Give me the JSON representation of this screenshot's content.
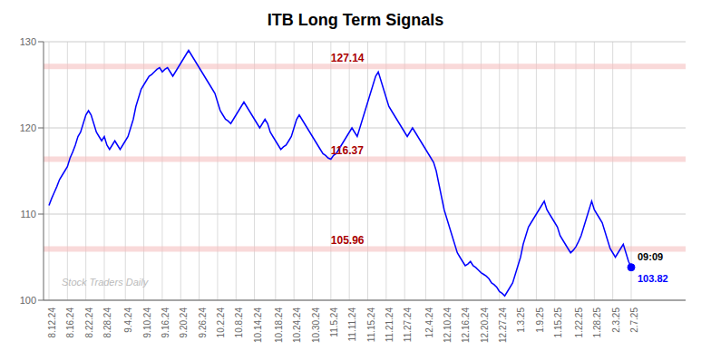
{
  "chart_data": {
    "type": "line",
    "title": "ITB Long Term Signals",
    "categories": [
      "8.12.24",
      null,
      null,
      null,
      null,
      null,
      null,
      "8.16.24",
      null,
      null,
      null,
      null,
      null,
      null,
      "8.22.24",
      null,
      null,
      null,
      null,
      null,
      null,
      "8.28.24",
      null,
      null,
      null,
      null,
      null,
      null,
      null,
      "9.4.24",
      null,
      null,
      null,
      null,
      null,
      null,
      "9.10.24",
      null,
      null,
      null,
      null,
      null,
      null,
      "9.16.24",
      null,
      null,
      null,
      null,
      null,
      null,
      "9.20.24",
      null,
      null,
      null,
      null,
      null,
      null,
      "9.26.24",
      null,
      null,
      null,
      null,
      null,
      null,
      "10.2.24",
      null,
      null,
      null,
      null,
      null,
      null,
      "10.8.24",
      null,
      null,
      null,
      null,
      null,
      null,
      "10.14.24",
      null,
      null,
      null,
      null,
      null,
      null,
      null,
      "10.18.24",
      null,
      null,
      null,
      null,
      null,
      null,
      "10.24.24",
      null,
      null,
      null,
      null,
      null,
      null,
      "10.30.24",
      null,
      null,
      null,
      null,
      null,
      null,
      "11.5.24",
      null,
      null,
      null,
      null,
      null,
      null,
      "11.11.24",
      null,
      null,
      null,
      null,
      null,
      null,
      "11.15.24",
      null,
      null,
      null,
      null,
      null,
      null,
      "11.21.24",
      null,
      null,
      null,
      null,
      null,
      null,
      "11.27.24",
      null,
      null,
      null,
      null,
      null,
      null,
      null,
      "12.4.24",
      null,
      null,
      null,
      null,
      null,
      null,
      "12.10.24",
      null,
      null,
      null,
      null,
      null,
      null,
      "12.16.24",
      null,
      null,
      null,
      null,
      null,
      null,
      "12.20.24",
      null,
      null,
      null,
      null,
      null,
      null,
      "12.27.24",
      null,
      null,
      null,
      null,
      null,
      null,
      "1.3.25",
      null,
      null,
      null,
      null,
      null,
      null,
      "1.9.25",
      null,
      null,
      null,
      null,
      null,
      null,
      "1.15.25",
      null,
      null,
      null,
      null,
      null,
      null,
      null,
      "1.22.25",
      null,
      null,
      null,
      null,
      null,
      null,
      "1.28.25",
      null,
      null,
      null,
      null,
      null,
      null,
      "2.3.25",
      null,
      null,
      null,
      null,
      null,
      null,
      "2.7.25"
    ],
    "values": [
      111.0,
      111.8,
      112.5,
      113.2,
      114.0,
      114.5,
      115.0,
      115.5,
      116.5,
      117.2,
      118.0,
      119.0,
      119.5,
      120.5,
      121.5,
      122.0,
      121.5,
      120.5,
      119.5,
      119.0,
      118.5,
      119.0,
      118.0,
      117.5,
      118.0,
      118.5,
      118.0,
      117.5,
      118.0,
      118.5,
      119.0,
      120.0,
      121.0,
      122.5,
      123.5,
      124.5,
      125.0,
      125.5,
      126.0,
      126.2,
      126.5,
      126.8,
      127.0,
      126.5,
      126.8,
      127.0,
      126.5,
      126.0,
      126.5,
      127.0,
      127.5,
      128.0,
      128.5,
      129.0,
      128.5,
      128.0,
      127.5,
      127.0,
      126.5,
      126.0,
      125.5,
      125.0,
      124.5,
      124.0,
      123.0,
      122.0,
      121.5,
      121.0,
      120.8,
      120.5,
      121.0,
      121.5,
      122.0,
      122.5,
      123.0,
      122.5,
      122.0,
      121.5,
      121.0,
      120.5,
      120.0,
      120.5,
      121.0,
      120.5,
      119.5,
      119.0,
      118.5,
      118.0,
      117.5,
      117.8,
      118.0,
      118.5,
      119.0,
      120.0,
      121.0,
      121.5,
      121.0,
      120.5,
      120.0,
      119.5,
      119.0,
      118.5,
      118.0,
      117.5,
      117.0,
      116.8,
      116.5,
      116.37,
      116.8,
      117.0,
      117.5,
      118.0,
      118.5,
      119.0,
      119.5,
      120.0,
      119.5,
      119.0,
      120.0,
      121.0,
      122.0,
      123.0,
      124.0,
      125.0,
      126.0,
      126.5,
      125.5,
      124.5,
      123.5,
      122.5,
      122.0,
      121.5,
      121.0,
      120.5,
      120.0,
      119.5,
      119.0,
      119.5,
      120.0,
      119.5,
      119.0,
      118.5,
      118.0,
      117.5,
      117.0,
      116.5,
      116.0,
      115.0,
      113.5,
      112.0,
      110.5,
      109.5,
      108.5,
      107.5,
      106.5,
      105.5,
      105.0,
      104.5,
      104.0,
      104.2,
      104.5,
      104.0,
      103.8,
      103.5,
      103.2,
      103.0,
      102.8,
      102.5,
      102.0,
      101.8,
      101.5,
      101.0,
      100.8,
      100.5,
      101.0,
      101.5,
      102.0,
      103.0,
      104.0,
      105.0,
      106.5,
      107.5,
      108.5,
      109.0,
      109.5,
      110.0,
      110.5,
      111.0,
      111.5,
      110.5,
      110.0,
      109.5,
      109.0,
      108.5,
      107.5,
      107.0,
      106.5,
      106.0,
      105.5,
      105.8,
      106.2,
      106.8,
      107.5,
      108.5,
      109.5,
      110.5,
      111.5,
      110.5,
      110.0,
      109.5,
      109.0,
      108.0,
      107.0,
      106.0,
      105.5,
      105.0,
      105.5,
      106.0,
      106.5,
      105.5,
      104.5,
      103.82
    ],
    "color": "blue",
    "ylim": [
      100,
      130
    ],
    "yticks": [
      100,
      110,
      120,
      130
    ],
    "grid": true,
    "reference_lines": [
      {
        "value": 105.96,
        "label": "105.96",
        "color": "#f5c0c0",
        "label_color": "#aa0000"
      },
      {
        "value": 116.37,
        "label": "116.37",
        "color": "#f5c0c0",
        "label_color": "#aa0000"
      },
      {
        "value": 127.14,
        "label": "127.14",
        "color": "#f5c0c0",
        "label_color": "#aa0000"
      }
    ],
    "annotations": [
      "09:09",
      "103.82",
      "Stock Traders Daily"
    ]
  }
}
